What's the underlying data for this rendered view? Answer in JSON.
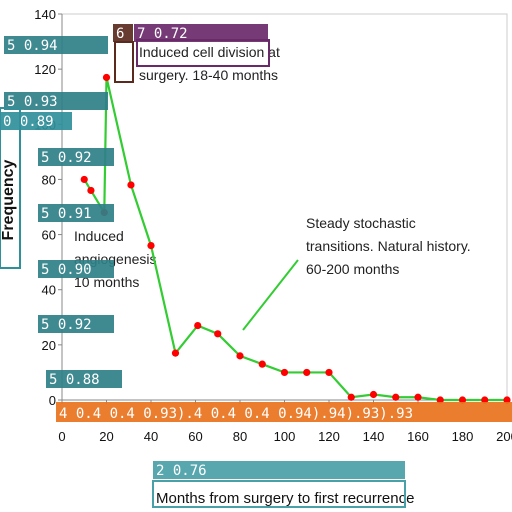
{
  "chart_data": {
    "type": "line",
    "xlabel": "Months from surgery to first recurrence",
    "ylabel": "Frequency",
    "xlim": [
      0,
      200
    ],
    "ylim": [
      0,
      140
    ],
    "x_ticks": [
      "0",
      "20",
      "40",
      "60",
      "80",
      "100",
      "120",
      "140",
      "160",
      "180",
      "200"
    ],
    "y_ticks": [
      "0",
      "20",
      "40",
      "60",
      "80",
      "100",
      "120",
      "140"
    ],
    "series": [
      {
        "color": "#33cc33",
        "marker_color": "#ff0000",
        "points": [
          [
            10,
            80
          ],
          [
            13,
            76
          ],
          [
            19,
            68
          ],
          [
            20,
            117
          ],
          [
            31,
            78
          ],
          [
            40,
            56
          ],
          [
            51,
            17
          ],
          [
            61,
            27
          ],
          [
            70,
            24
          ],
          [
            80,
            16
          ],
          [
            90,
            13
          ],
          [
            100,
            10
          ],
          [
            110,
            10
          ],
          [
            120,
            10
          ],
          [
            130,
            1
          ],
          [
            140,
            2
          ],
          [
            150,
            1
          ],
          [
            160,
            1
          ],
          [
            170,
            0
          ],
          [
            180,
            0
          ],
          [
            190,
            0
          ],
          [
            200,
            0
          ]
        ]
      }
    ],
    "annotations": [
      {
        "lines": [
          "Induced cell division at",
          "surgery.  18-40 months"
        ]
      },
      {
        "lines": [
          "Induced",
          "angiogenesis",
          "10 months"
        ]
      },
      {
        "lines": [
          "Steady stochastic",
          "transitions. Natural history.",
          "60-200 months"
        ]
      }
    ],
    "detection_overlays": [
      {
        "text": "5  0.94",
        "color": "#2f7f88"
      },
      {
        "text": "5  0.93",
        "color": "#2f7f88"
      },
      {
        "text": "0  0.89",
        "color": "#2f8f9a"
      },
      {
        "text": "5  0.92",
        "color": "#2f7f88"
      },
      {
        "text": "5  0.91",
        "color": "#2f7f88"
      },
      {
        "text": "5  0.90",
        "color": "#2f7f88"
      },
      {
        "text": "5  0.92",
        "color": "#2f7f88"
      },
      {
        "text": "5  0.88",
        "color": "#2f7f88"
      },
      {
        "text": "6",
        "color": "#5a2a1e"
      },
      {
        "text": "7  0.72",
        "color": "#6a2a6a"
      },
      {
        "text": "4  0.4  0.4  0.93).4  0.4  0.4  0.94).94).93).93",
        "color": "#e8721c"
      },
      {
        "text": "2  0.76",
        "color": "#4aa0a8"
      }
    ]
  }
}
